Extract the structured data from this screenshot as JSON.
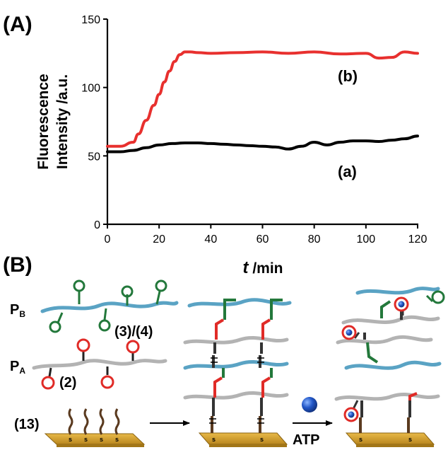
{
  "panel_a": {
    "label": "(A)"
  },
  "panel_b": {
    "label": "(B)"
  },
  "chart_data": {
    "type": "line",
    "xlabel_italic": "t",
    "xlabel_rest": " /min",
    "ylabel_line1": "Fluorescence",
    "ylabel_line2": "Intensity /a.u.",
    "xlim": [
      0,
      120
    ],
    "ylim": [
      0,
      150
    ],
    "xticks": [
      0,
      20,
      40,
      60,
      80,
      100,
      120
    ],
    "yticks": [
      0,
      50,
      100,
      150
    ],
    "series": [
      {
        "name": "(a)",
        "color": "#000000",
        "x": [
          0,
          5,
          10,
          15,
          20,
          25,
          30,
          35,
          40,
          45,
          50,
          55,
          60,
          65,
          70,
          75,
          80,
          85,
          90,
          95,
          100,
          105,
          110,
          115,
          120
        ],
        "y": [
          53,
          53,
          54,
          56,
          58,
          59,
          59.5,
          59.5,
          59,
          58.5,
          58,
          57.5,
          57,
          56.5,
          55,
          57,
          60,
          58,
          60,
          61,
          61,
          60.5,
          61.5,
          62.5,
          64.5
        ]
      },
      {
        "name": "(b)",
        "color": "#e8302e",
        "x": [
          0,
          5,
          10,
          12,
          15,
          18,
          20,
          22,
          24,
          26,
          28,
          30,
          32,
          35,
          40,
          50,
          60,
          70,
          80,
          90,
          100,
          105,
          110,
          115,
          120
        ],
        "y": [
          57,
          57,
          60,
          66,
          76,
          87,
          95,
          104,
          112,
          119,
          124,
          126,
          126,
          125.5,
          125,
          125.5,
          126,
          125,
          126,
          124.5,
          125,
          121.5,
          122,
          126,
          125
        ]
      }
    ]
  },
  "diagram": {
    "pb_main": "P",
    "pb_sub": "B",
    "pa_main": "P",
    "pa_sub": "A",
    "label_34": "(3)/(4)",
    "label_2": "(2)",
    "label_13": "(13)",
    "atp_label": "ATP",
    "s_letter": "s",
    "colors": {
      "blue_strand": "#5aa3c4",
      "gray_strand": "#b3b3b3",
      "green": "#23783b",
      "red": "#e02b27",
      "brown": "#5a3a1f",
      "gold": "#d9a632",
      "atp_blue": "#1e55b8"
    }
  }
}
